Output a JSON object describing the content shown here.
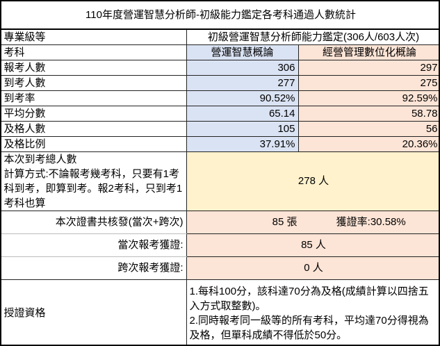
{
  "title": "110年度營運智慧分析師-初級能力鑑定各考科通過人數統計",
  "header": {
    "level_label": "專業級等",
    "level_value": "初級營運智慧分析師能力鑑定(306人/603人次)"
  },
  "subjects": {
    "label": "考科",
    "items": [
      "營運智慧概論",
      "經營管理數位化概論"
    ]
  },
  "rows": [
    {
      "label": "報考人數",
      "values": [
        "306",
        "297"
      ]
    },
    {
      "label": "到考人數",
      "values": [
        "277",
        "275"
      ]
    },
    {
      "label": "到考率",
      "values": [
        "90.52%",
        "92.59%"
      ]
    },
    {
      "label": "平均分數",
      "values": [
        "65.14",
        "58.78"
      ]
    },
    {
      "label": "及格人數",
      "values": [
        "105",
        "56"
      ]
    },
    {
      "label": "及格比例",
      "values": [
        "37.91%",
        "20.36%"
      ]
    }
  ],
  "total_attend": {
    "label": "本次到考總人數",
    "note": "計算方式:不論報考幾考科，只要有1考科到考，即算到考。報2考科，只到考1考科也算",
    "value": "278 人"
  },
  "certificates": {
    "label": "本次證書共核發(當次+跨次)",
    "value": "85 張",
    "rate": "獲證率:30.58%",
    "current_label": "當次報考獲證:",
    "current_value": "85 人",
    "cross_label": "跨次報考獲證:",
    "cross_value": "0 人"
  },
  "qualification": {
    "label": "授證資格",
    "rule1": "1.每科100分，該科達70分為及格(成績計算以四捨五入方式取整數)。",
    "rule2": "2.同時報考同一級等的所有考科，平均達70分得視為及格，但單科成績不得低於50分。"
  },
  "colors": {
    "blue": "#dae3f3",
    "peach": "#fce4d6",
    "yellow": "#fff2cc"
  }
}
